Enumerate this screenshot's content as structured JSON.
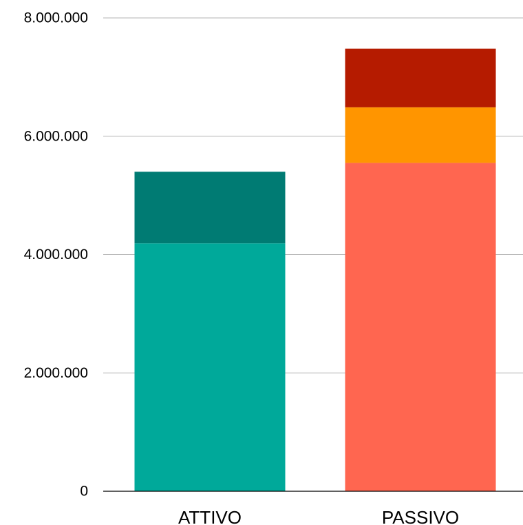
{
  "chart_data": {
    "type": "bar",
    "stacked": true,
    "categories": [
      "ATTIVO",
      "PASSIVO"
    ],
    "ylim": [
      0,
      8000000
    ],
    "yticks": [
      0,
      2000000,
      4000000,
      6000000,
      8000000
    ],
    "ytick_labels": [
      "0",
      "2.000.000",
      "4.000.000",
      "6.000.000",
      "8.000.000"
    ],
    "grid": true,
    "legend": "none",
    "stacks": [
      {
        "category": "ATTIVO",
        "segments": [
          {
            "value": 4190000,
            "color": "#00a99a"
          },
          {
            "value": 1210000,
            "color": "#007b73"
          }
        ]
      },
      {
        "category": "PASSIVO",
        "segments": [
          {
            "value": 5550000,
            "color": "#ff6650"
          },
          {
            "value": 940000,
            "color": "#ff9500"
          },
          {
            "value": 990000,
            "color": "#b51b00"
          }
        ]
      }
    ]
  }
}
